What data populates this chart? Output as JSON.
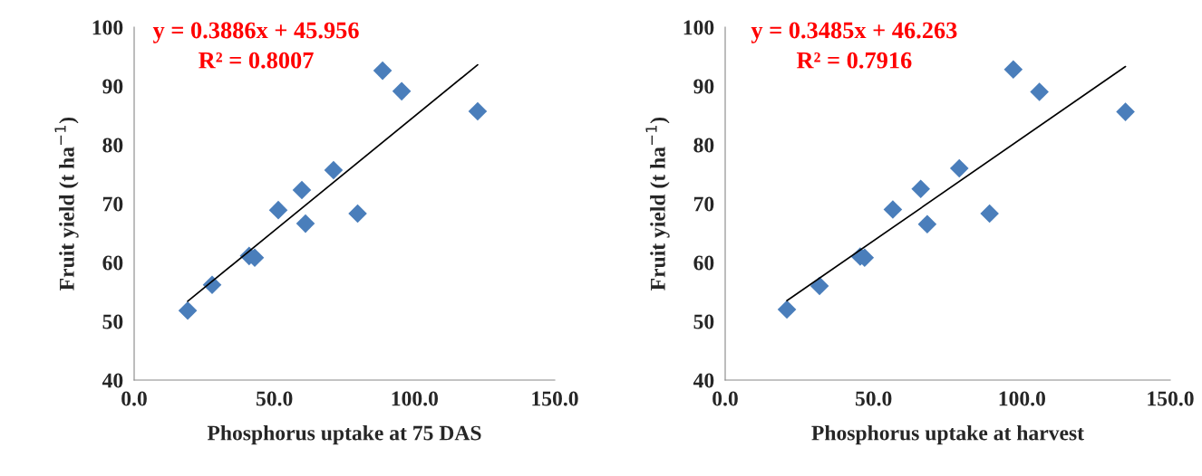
{
  "chart_data": [
    {
      "type": "scatter",
      "xlabel": "Phosphorus uptake at 75 DAS",
      "ylabel": "Fruit yield (t ha$^{−1}$)",
      "annotations": [
        "y = 0.3886x + 45.956",
        "R² = 0.8007"
      ],
      "xlim": [
        0,
        150
      ],
      "xticks": [
        {
          "value": 0,
          "label": "0.0"
        },
        {
          "value": 50,
          "label": "50.0"
        },
        {
          "value": 100,
          "label": "100.0"
        },
        {
          "value": 150,
          "label": "150.0"
        }
      ],
      "ylim": [
        40,
        100
      ],
      "yticks": [
        40,
        50,
        60,
        70,
        80,
        90,
        100
      ],
      "grid": false,
      "series": [
        {
          "marker": "diamond",
          "color": "#4a7ebb",
          "x": [
            19.1,
            27.8,
            41,
            43,
            51.4,
            59.8,
            61.1,
            71.1,
            79.7,
            88.6,
            95.4,
            122.5
          ],
          "values": [
            51.8,
            56.2,
            61.1,
            60.8,
            68.9,
            72.3,
            66.6,
            75.7,
            68.3,
            92.6,
            89.1,
            85.7
          ]
        },
        {
          "type": "line",
          "color": "#000000",
          "x": [
            19.1,
            122.5
          ],
          "values": [
            53.4,
            93.6
          ]
        }
      ]
    },
    {
      "type": "scatter",
      "xlabel": "Phosphorus uptake at harvest",
      "ylabel": "Fruit yield (t ha$^{−1}$)",
      "annotations": [
        "y = 0.3485x + 46.263",
        "R² = 0.7916"
      ],
      "xlim": [
        0,
        150
      ],
      "xticks": [
        {
          "value": 0,
          "label": "0.0"
        },
        {
          "value": 50,
          "label": "50.0"
        },
        {
          "value": 100,
          "label": "100.0"
        },
        {
          "value": 150,
          "label": "150.0"
        }
      ],
      "ylim": [
        40,
        100
      ],
      "yticks": [
        40,
        50,
        60,
        70,
        80,
        90,
        100
      ],
      "grid": false,
      "series": [
        {
          "marker": "diamond",
          "color": "#4a7ebb",
          "x": [
            20.8,
            31.8,
            45.5,
            47,
            56.5,
            65.9,
            68.1,
            78.9,
            89.1,
            97.1,
            105.9,
            134.9
          ],
          "values": [
            52,
            56,
            61,
            60.8,
            69,
            72.5,
            66.5,
            76,
            68.3,
            92.8,
            89,
            85.6
          ]
        },
        {
          "type": "line",
          "color": "#000000",
          "x": [
            20.8,
            134.9
          ],
          "values": [
            53.5,
            93.3
          ]
        }
      ]
    }
  ]
}
